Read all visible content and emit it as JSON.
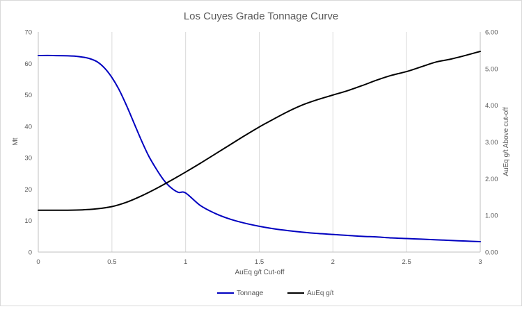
{
  "chart_data": {
    "type": "line",
    "title": "Los Cuyes Grade Tonnage Curve",
    "xlabel": "AuEq g/t Cut-off",
    "ylabel": "Mt",
    "y2label": "AuEq g/t Above cut-off",
    "xlim": [
      0,
      3
    ],
    "ylim": [
      0,
      70
    ],
    "y2lim": [
      0,
      6
    ],
    "x_ticks": [
      "0",
      "0.5",
      "1",
      "1.5",
      "2",
      "2.5",
      "3"
    ],
    "y_ticks": [
      "0",
      "10",
      "20",
      "30",
      "40",
      "50",
      "60",
      "70"
    ],
    "y2_ticks": [
      "0.00",
      "1.00",
      "2.00",
      "3.00",
      "4.00",
      "5.00",
      "6.00"
    ],
    "grid": "vertical",
    "legend_position": "bottom",
    "series": [
      {
        "name": "Tonnage",
        "axis": "left",
        "color": "#0000c0",
        "x": [
          0,
          0.1,
          0.2,
          0.25,
          0.3,
          0.35,
          0.4,
          0.45,
          0.5,
          0.55,
          0.6,
          0.65,
          0.7,
          0.75,
          0.8,
          0.85,
          0.9,
          0.95,
          1.0,
          1.1,
          1.2,
          1.3,
          1.4,
          1.5,
          1.6,
          1.7,
          1.8,
          1.9,
          2.0,
          2.1,
          2.2,
          2.3,
          2.4,
          2.5,
          2.6,
          2.7,
          2.8,
          2.9,
          3.0
        ],
        "y": [
          62.5,
          62.5,
          62.4,
          62.3,
          62.0,
          61.5,
          60.5,
          58.5,
          55.5,
          51.5,
          46.5,
          41.0,
          35.5,
          30.5,
          26.5,
          23.0,
          20.5,
          19.0,
          18.8,
          14.8,
          12.3,
          10.5,
          9.2,
          8.2,
          7.4,
          6.8,
          6.3,
          5.9,
          5.6,
          5.3,
          5.0,
          4.8,
          4.5,
          4.3,
          4.1,
          3.9,
          3.7,
          3.5,
          3.3
        ]
      },
      {
        "name": "AuEq g/t",
        "axis": "right",
        "color": "#000000",
        "x": [
          0,
          0.1,
          0.2,
          0.3,
          0.4,
          0.5,
          0.6,
          0.7,
          0.8,
          0.9,
          1.0,
          1.1,
          1.2,
          1.3,
          1.4,
          1.5,
          1.6,
          1.7,
          1.8,
          1.9,
          2.0,
          2.1,
          2.2,
          2.3,
          2.4,
          2.5,
          2.6,
          2.7,
          2.8,
          2.9,
          3.0
        ],
        "y": [
          1.14,
          1.14,
          1.14,
          1.15,
          1.18,
          1.24,
          1.36,
          1.53,
          1.73,
          1.95,
          2.18,
          2.42,
          2.67,
          2.92,
          3.17,
          3.41,
          3.63,
          3.84,
          4.02,
          4.16,
          4.28,
          4.4,
          4.54,
          4.69,
          4.82,
          4.92,
          5.05,
          5.18,
          5.26,
          5.36,
          5.47
        ]
      }
    ]
  }
}
